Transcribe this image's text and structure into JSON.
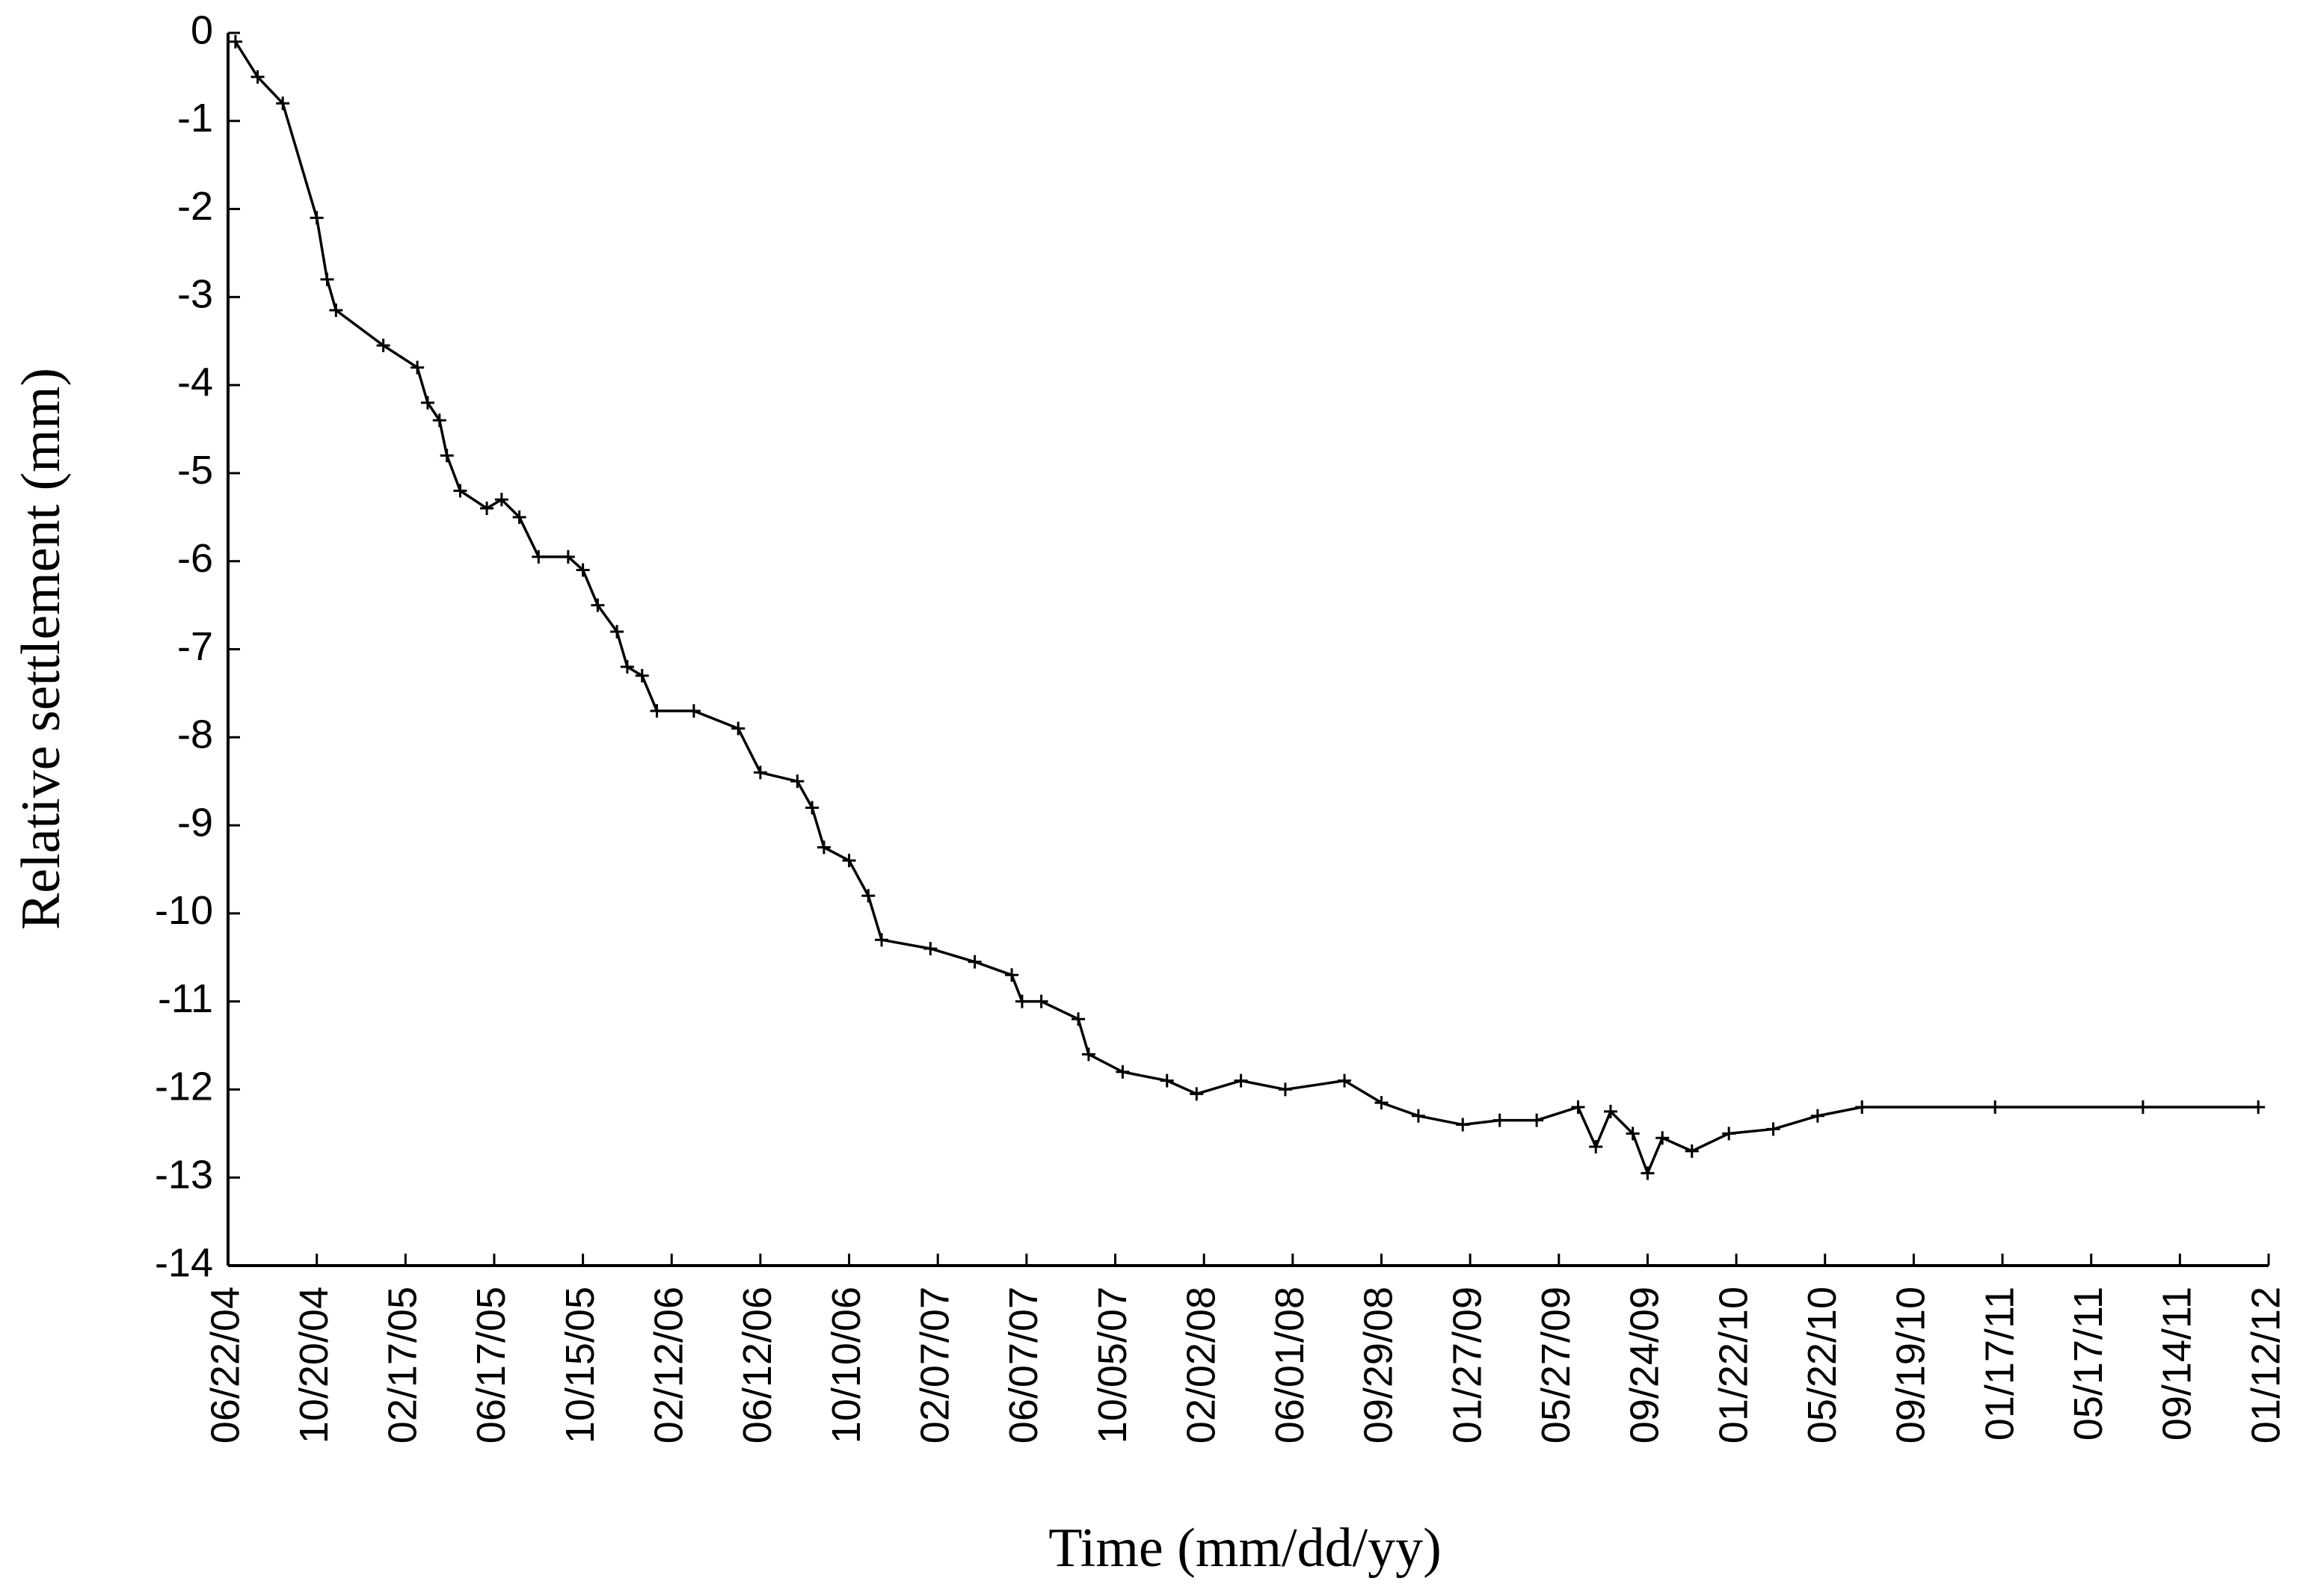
{
  "chart_data": {
    "type": "line",
    "x_label": "Time (mm/dd/yy)",
    "y_label": "Relative settlement (mm)",
    "color": "#000000",
    "marker": "+",
    "xlim": [
      "06/22/04",
      "01/12/12"
    ],
    "xticks": [
      "06/22/04",
      "10/20/04",
      "02/17/05",
      "06/17/05",
      "10/15/05",
      "02/12/06",
      "06/12/06",
      "10/10/06",
      "02/07/07",
      "06/07/07",
      "10/05/07",
      "02/02/08",
      "06/01/08",
      "09/29/08",
      "01/27/09",
      "05/27/09",
      "09/24/09",
      "01/22/10",
      "05/22/10",
      "09/19/10",
      "01/17/11",
      "05/17/11",
      "09/14/11",
      "01/12/12"
    ],
    "ylim": [
      -14,
      0
    ],
    "yticks": [
      0,
      -1,
      -2,
      -3,
      -4,
      -5,
      -6,
      -7,
      -8,
      -9,
      -10,
      -11,
      -12,
      -13,
      -14
    ],
    "x": [
      "07/02/04",
      "08/01/04",
      "09/04/04",
      "10/20/04",
      "11/03/04",
      "11/15/04",
      "01/18/05",
      "03/05/05",
      "03/19/05",
      "04/04/05",
      "04/14/05",
      "05/02/05",
      "06/07/05",
      "06/27/05",
      "07/21/05",
      "08/16/05",
      "09/25/05",
      "10/15/05",
      "11/04/05",
      "11/30/05",
      "12/14/05",
      "01/03/06",
      "01/23/06",
      "03/14/06",
      "05/13/06",
      "06/12/06",
      "08/01/06",
      "08/21/06",
      "09/06/06",
      "10/10/06",
      "11/05/06",
      "11/23/06",
      "01/28/07",
      "03/29/07",
      "05/18/07",
      "06/01/07",
      "06/27/07",
      "08/16/07",
      "08/30/07",
      "10/15/07",
      "12/14/07",
      "01/23/08",
      "03/23/08",
      "05/22/08",
      "08/10/08",
      "09/29/08",
      "11/18/08",
      "01/17/09",
      "03/08/09",
      "04/27/09",
      "06/22/09",
      "07/16/09",
      "08/05/09",
      "09/04/09",
      "09/24/09",
      "10/14/09",
      "11/23/09",
      "01/12/10",
      "03/13/10",
      "05/12/10",
      "07/11/10",
      "01/07/11",
      "07/26/11",
      "12/29/11"
    ],
    "values": [
      -0.1,
      -0.5,
      -0.8,
      -2.1,
      -2.8,
      -3.15,
      -3.55,
      -3.8,
      -4.2,
      -4.4,
      -4.8,
      -5.2,
      -5.4,
      -5.3,
      -5.5,
      -5.95,
      -5.95,
      -6.1,
      -6.5,
      -6.8,
      -7.2,
      -7.3,
      -7.7,
      -7.7,
      -7.9,
      -8.4,
      -8.5,
      -8.8,
      -9.25,
      -9.4,
      -9.8,
      -10.3,
      -10.4,
      -10.55,
      -10.7,
      -11.0,
      -11.0,
      -11.2,
      -11.6,
      -11.8,
      -11.9,
      -12.05,
      -11.9,
      -12.0,
      -11.9,
      -12.15,
      -12.3,
      -12.4,
      -12.35,
      -12.35,
      -12.2,
      -12.65,
      -12.25,
      -12.5,
      -12.95,
      -12.55,
      -12.7,
      -12.5,
      -12.45,
      -12.3,
      -12.2,
      -12.2,
      -12.2,
      -12.2
    ]
  }
}
